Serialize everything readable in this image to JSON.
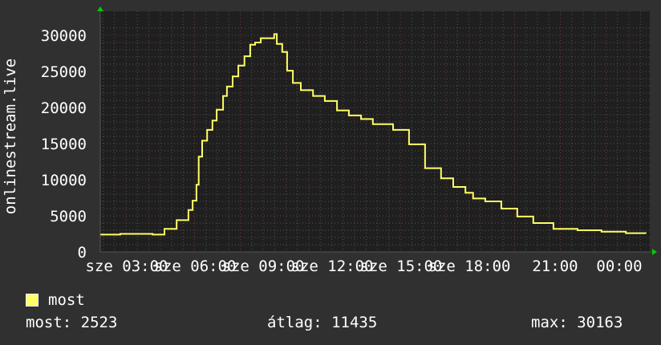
{
  "chart_data": {
    "type": "line",
    "ylabel": "onlinestream.live",
    "ylim": [
      0,
      30000
    ],
    "y_ticks": [
      "0",
      "5000",
      "10000",
      "15000",
      "20000",
      "25000",
      "30000"
    ],
    "x_tick_labels": [
      "sze 03:00",
      "sze 06:00",
      "sze 09:00",
      "sze 12:00",
      "sze 15:00",
      "sze 18:00",
      "21:00",
      "00:00"
    ],
    "grid": true,
    "legend": "bottom-left",
    "series": [
      {
        "name": "most",
        "color": "#ffff66",
        "x": [
          "01:53",
          "02:45",
          "03:59",
          "04:10",
          "04:41",
          "05:13",
          "05:44",
          "05:55",
          "06:05",
          "06:11",
          "06:20",
          "06:33",
          "06:47",
          "06:58",
          "07:15",
          "07:25",
          "07:40",
          "07:55",
          "08:11",
          "08:26",
          "08:39",
          "08:54",
          "09:15",
          "09:29",
          "09:36",
          "09:50",
          "10:03",
          "10:18",
          "10:39",
          "11:11",
          "11:42",
          "12:14",
          "12:45",
          "13:17",
          "13:48",
          "14:41",
          "15:23",
          "16:05",
          "16:47",
          "17:19",
          "17:51",
          "18:11",
          "18:43",
          "19:25",
          "20:07",
          "20:49",
          "21:42",
          "22:45",
          "23:48",
          "00:52",
          "01:44"
        ],
        "values": [
          2400,
          2500,
          2500,
          2400,
          3200,
          4400,
          5800,
          7100,
          9300,
          13200,
          15400,
          16900,
          18200,
          19700,
          21600,
          22900,
          24300,
          25800,
          27100,
          28700,
          29000,
          29600,
          29600,
          30163,
          28800,
          27700,
          25100,
          23400,
          22400,
          21600,
          20900,
          19600,
          18900,
          18400,
          17700,
          16900,
          14900,
          11600,
          10200,
          9000,
          8200,
          7400,
          7000,
          6000,
          4900,
          4000,
          3200,
          3000,
          2800,
          2600,
          2523
        ]
      }
    ]
  },
  "legend": {
    "label": "most",
    "color": "#ffff66"
  },
  "stats": {
    "current": "most: 2523",
    "average": "átlag: 11435",
    "max": "max: 30163"
  }
}
